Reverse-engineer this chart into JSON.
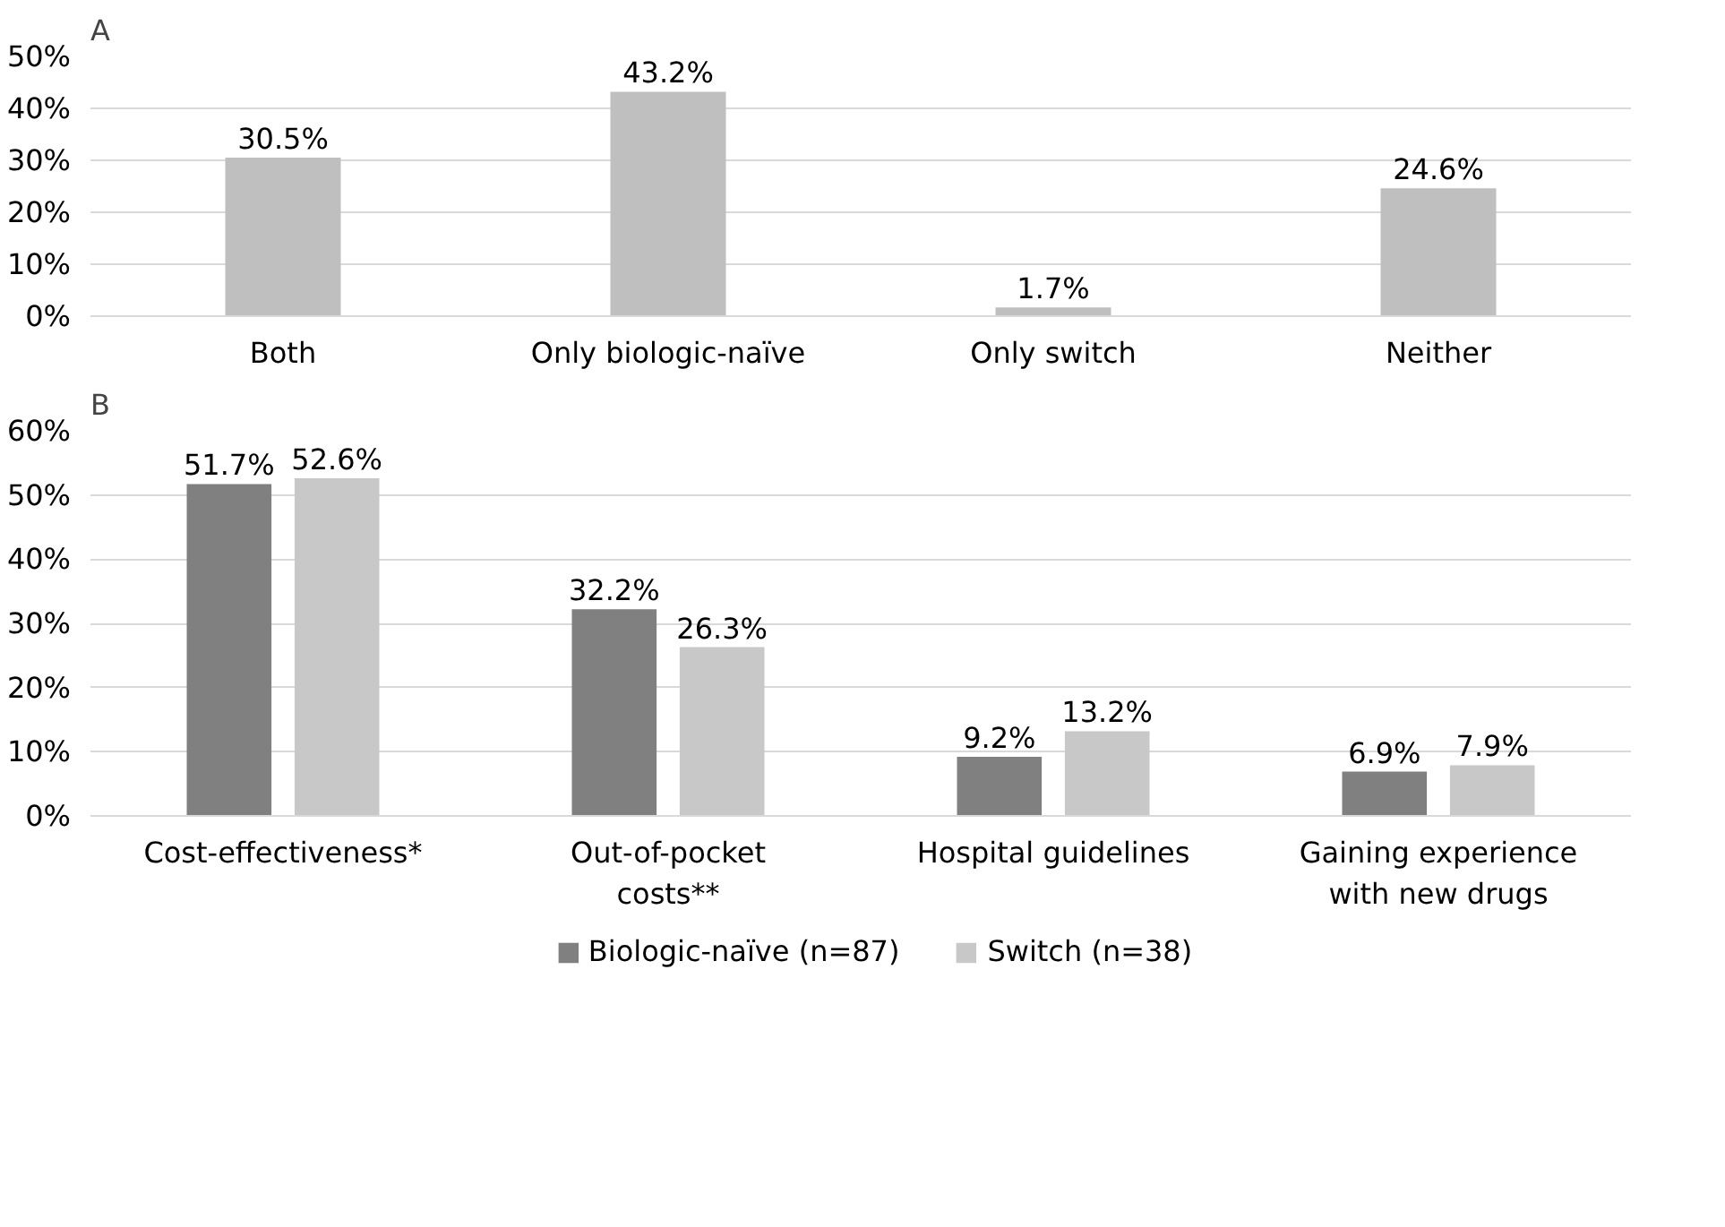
{
  "chart_data": [
    {
      "type": "bar",
      "title": "A",
      "categories": [
        "Both",
        "Only biologic-naïve",
        "Only switch",
        "Neither"
      ],
      "series": [
        {
          "color": "#bfbfbf",
          "values": [
            30.5,
            43.2,
            1.7,
            24.6
          ],
          "value_labels": [
            "30.5%",
            "43.2%",
            "1.7%",
            "24.6%"
          ]
        }
      ],
      "ylim": [
        0,
        50
      ],
      "yticks": [
        {
          "value": 0,
          "label": "0%"
        },
        {
          "value": 10,
          "label": "10%"
        },
        {
          "value": 20,
          "label": "20%"
        },
        {
          "value": 30,
          "label": "30%"
        },
        {
          "value": 40,
          "label": "40%"
        },
        {
          "value": 50,
          "label": "50%"
        }
      ],
      "grid": "y"
    },
    {
      "type": "bar",
      "title": "B",
      "categories": [
        "Cost-effectiveness*",
        "Out-of-pocket costs**",
        "Hospital guidelines",
        "Gaining experience with new drugs"
      ],
      "series": [
        {
          "name": "Biologic-naïve (n=87)",
          "color": "#808080",
          "values": [
            51.7,
            32.2,
            9.2,
            6.9
          ],
          "value_labels": [
            "51.7%",
            "32.2%",
            "9.2%",
            "6.9%"
          ]
        },
        {
          "name": "Switch (n=38)",
          "color": "#c8c8c8",
          "values": [
            52.6,
            26.3,
            13.2,
            7.9
          ],
          "value_labels": [
            "52.6%",
            "26.3%",
            "13.2%",
            "7.9%"
          ]
        }
      ],
      "ylim": [
        0,
        60
      ],
      "yticks": [
        {
          "value": 0,
          "label": "0%"
        },
        {
          "value": 10,
          "label": "10%"
        },
        {
          "value": 20,
          "label": "20%"
        },
        {
          "value": 30,
          "label": "30%"
        },
        {
          "value": 40,
          "label": "40%"
        },
        {
          "value": 50,
          "label": "50%"
        },
        {
          "value": 60,
          "label": "60%"
        }
      ],
      "grid": "y",
      "legend": "bottom"
    }
  ]
}
